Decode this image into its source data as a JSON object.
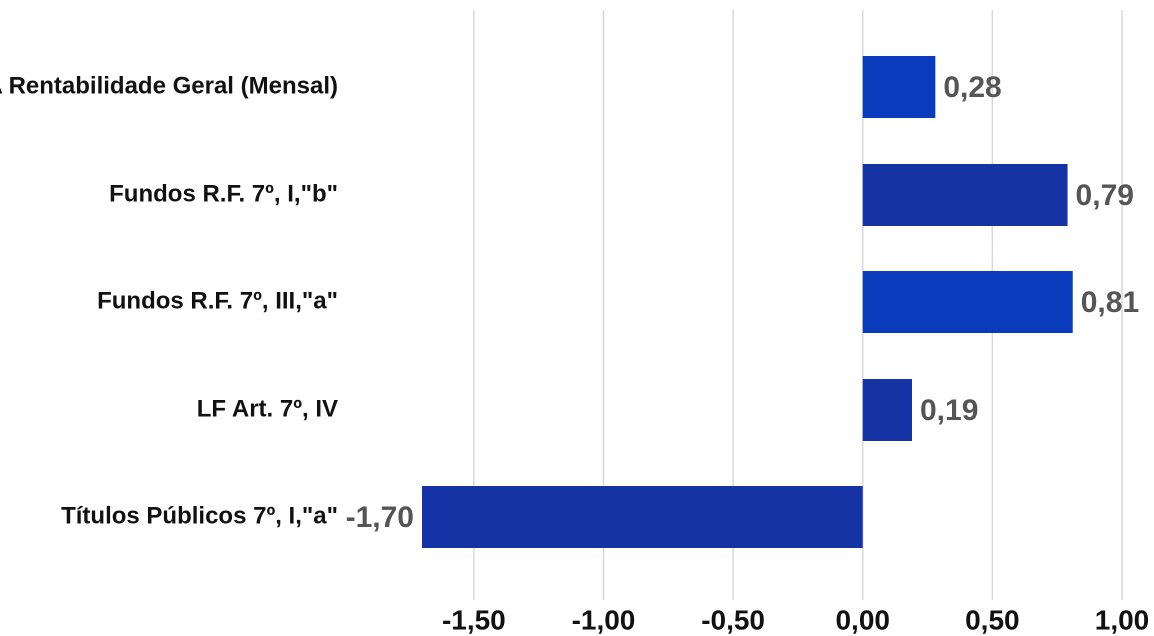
{
  "chart_data": {
    "type": "bar",
    "orientation": "horizontal",
    "categories": [
      "A Rentabilidade Geral (Mensal)",
      "Fundos R.F. 7º, I,\"b\"",
      "Fundos R.F. 7º, III,\"a\"",
      "LF Art. 7º, IV",
      "Títulos Públicos 7º, I,\"a\""
    ],
    "values": [
      0.28,
      0.79,
      0.81,
      0.19,
      -1.7
    ],
    "value_labels": [
      "0,28",
      "0,79",
      "0,81",
      "0,19",
      "-1,70"
    ],
    "bar_colors": [
      "#0a3bbd",
      "#1633a6",
      "#0a3bbd",
      "#1633a6",
      "#1633a6"
    ],
    "xlim": [
      -1.7,
      1.0
    ],
    "xticks": [
      -1.5,
      -1.0,
      -0.5,
      0.0,
      0.5,
      1.0
    ],
    "xtick_labels": [
      "-1,50",
      "-1,00",
      "-0,50",
      "0,00",
      "0,50",
      "1,00"
    ],
    "grid": true,
    "title": "",
    "xlabel": "",
    "ylabel": ""
  }
}
